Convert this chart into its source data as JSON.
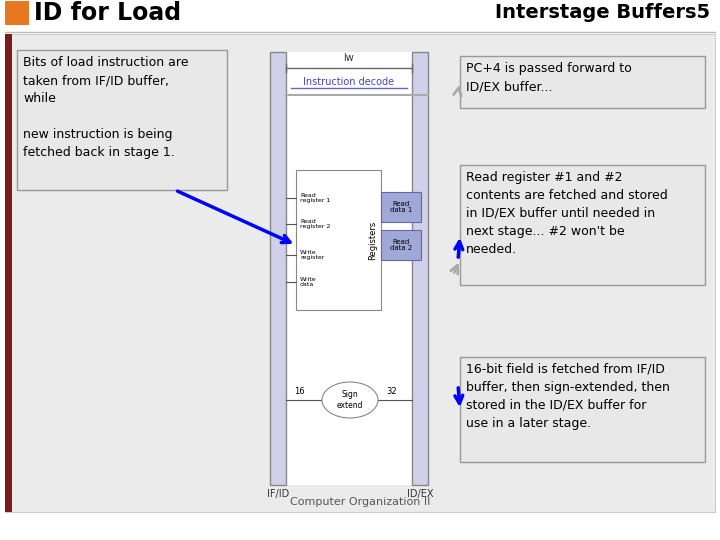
{
  "title_left": "ID for Load",
  "title_right": "Interstage Buffers",
  "title_right_num": "5",
  "orange_rect_color": "#E87722",
  "dark_red_rect_color": "#7B1C1C",
  "background_color": "#FFFFFF",
  "content_bg": "#EBEBEB",
  "box_bg": "#E0E0E0",
  "box_border": "#999999",
  "box1_text": "Bits of load instruction are\ntaken from IF/ID buffer,\nwhile\n\nnew instruction is being\nfetched back in stage 1.",
  "box2_text": "PC+4 is passed forward to\nID/EX buffer...",
  "box3_text": "Read register #1 and #2\ncontents are fetched and stored\nin ID/EX buffer until needed in\nnext stage... #2 won't be\nneeded.",
  "box4_text": "16-bit field is fetched from IF/ID\nbuffer, then sign-extended, then\nstored in the ID/EX buffer for\nuse in a later stage.",
  "footer_text": "Computer Organization II",
  "pipeline_col": "#D0D0E8",
  "reg_blue": "#9090C8",
  "read_data_blue": "#A0A8D8"
}
